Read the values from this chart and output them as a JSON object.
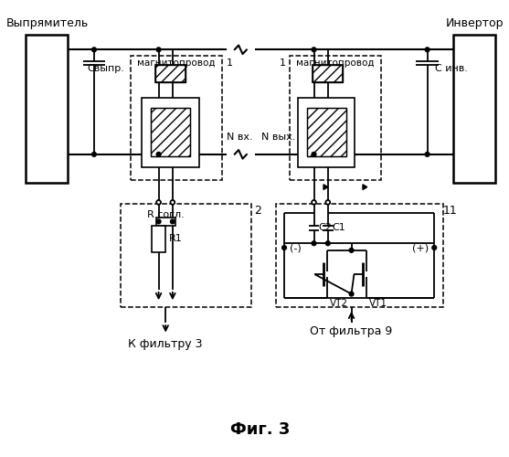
{
  "bg_color": "#ffffff",
  "labels": {
    "vipryamitel": "Выпрямитель",
    "invertor": "Инвертор",
    "svypr": "Свыпр.",
    "s_inv": "С инв.",
    "magnitoprovod": "магнитопровод",
    "N_vx": "N вх.",
    "N_vyx": "N вых.",
    "R_sogl": "R согл.",
    "R1": "R1",
    "block2": "2",
    "block11": "11",
    "label1": "1",
    "C2": "C2",
    "C1": "C1",
    "minus": "(-)",
    "plus": "(+)",
    "VT2": "VT2",
    "VT1": "VT1",
    "k_filtru": "К фильтру 3",
    "ot_filtra": "От фильтра 9",
    "fig3": "Фиг. 3"
  }
}
